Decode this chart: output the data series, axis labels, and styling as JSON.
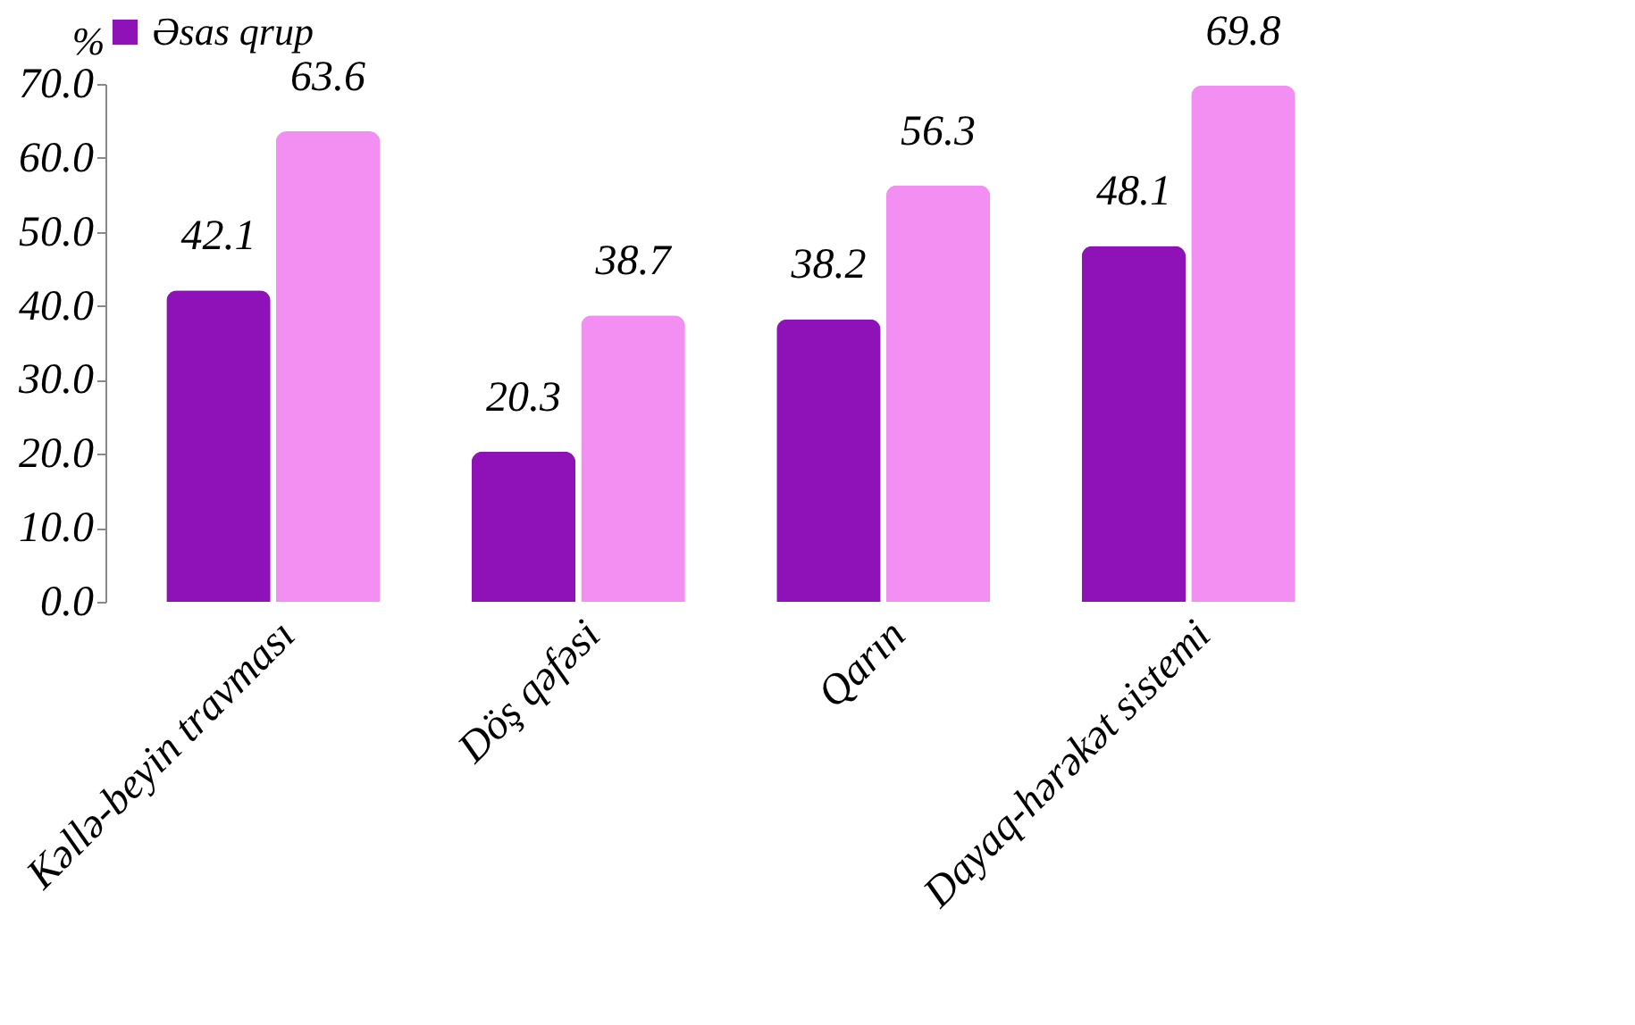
{
  "chart_data": {
    "type": "bar",
    "ylabel": "%",
    "categories": [
      "Kəllə-beyin travması",
      "Döş qəfəsi",
      "Qarın",
      "Dayaq-hərəkət sistemi"
    ],
    "series": [
      {
        "name": "Əsas qrup",
        "color": "#8e12b8",
        "values": [
          42.1,
          20.3,
          38.2,
          48.1
        ]
      },
      {
        "color": "#f38ef2",
        "values": [
          63.6,
          38.7,
          56.3,
          69.8
        ]
      }
    ],
    "ylim": [
      0,
      70
    ],
    "yticks": [
      {
        "value": 0,
        "label": "0.0"
      },
      {
        "value": 10,
        "label": "10.0"
      },
      {
        "value": 20,
        "label": "20.0"
      },
      {
        "value": 30,
        "label": "30.0"
      },
      {
        "value": 40,
        "label": "40.0"
      },
      {
        "value": 50,
        "label": "50.0"
      },
      {
        "value": 60,
        "label": "60.0"
      },
      {
        "value": 70,
        "label": "70.0"
      }
    ],
    "data_labels": true,
    "grid": false,
    "legend": "top"
  }
}
